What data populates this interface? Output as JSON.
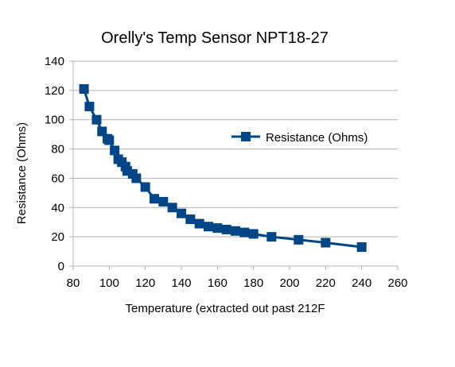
{
  "chart_data": {
    "type": "line",
    "title": "Orelly's Temp Sensor NPT18-27",
    "xlabel": "Temperature (extracted out past 212F",
    "ylabel": "Resistance (Ohms)",
    "xlim": [
      80,
      260
    ],
    "ylim": [
      0,
      140
    ],
    "xticks": [
      80,
      100,
      120,
      140,
      160,
      180,
      200,
      220,
      240,
      260
    ],
    "yticks": [
      0,
      20,
      40,
      60,
      80,
      100,
      120,
      140
    ],
    "grid": "horizontal",
    "legend_position": "right",
    "series": [
      {
        "name": "Resistance (Ohms)",
        "color": "#004586",
        "marker": "square",
        "x": [
          86,
          89,
          93,
          96,
          99,
          100,
          103,
          105,
          107,
          109,
          110,
          113,
          115,
          120,
          125,
          130,
          135,
          140,
          145,
          150,
          155,
          160,
          165,
          170,
          175,
          180,
          190,
          205,
          220,
          240
        ],
        "y": [
          121,
          109,
          100,
          92,
          87,
          86,
          79,
          73,
          71,
          68,
          65,
          63,
          60,
          54,
          46,
          44,
          40,
          36,
          32,
          29,
          27,
          26,
          25,
          24,
          23,
          22,
          20,
          18,
          16,
          13
        ]
      }
    ]
  }
}
